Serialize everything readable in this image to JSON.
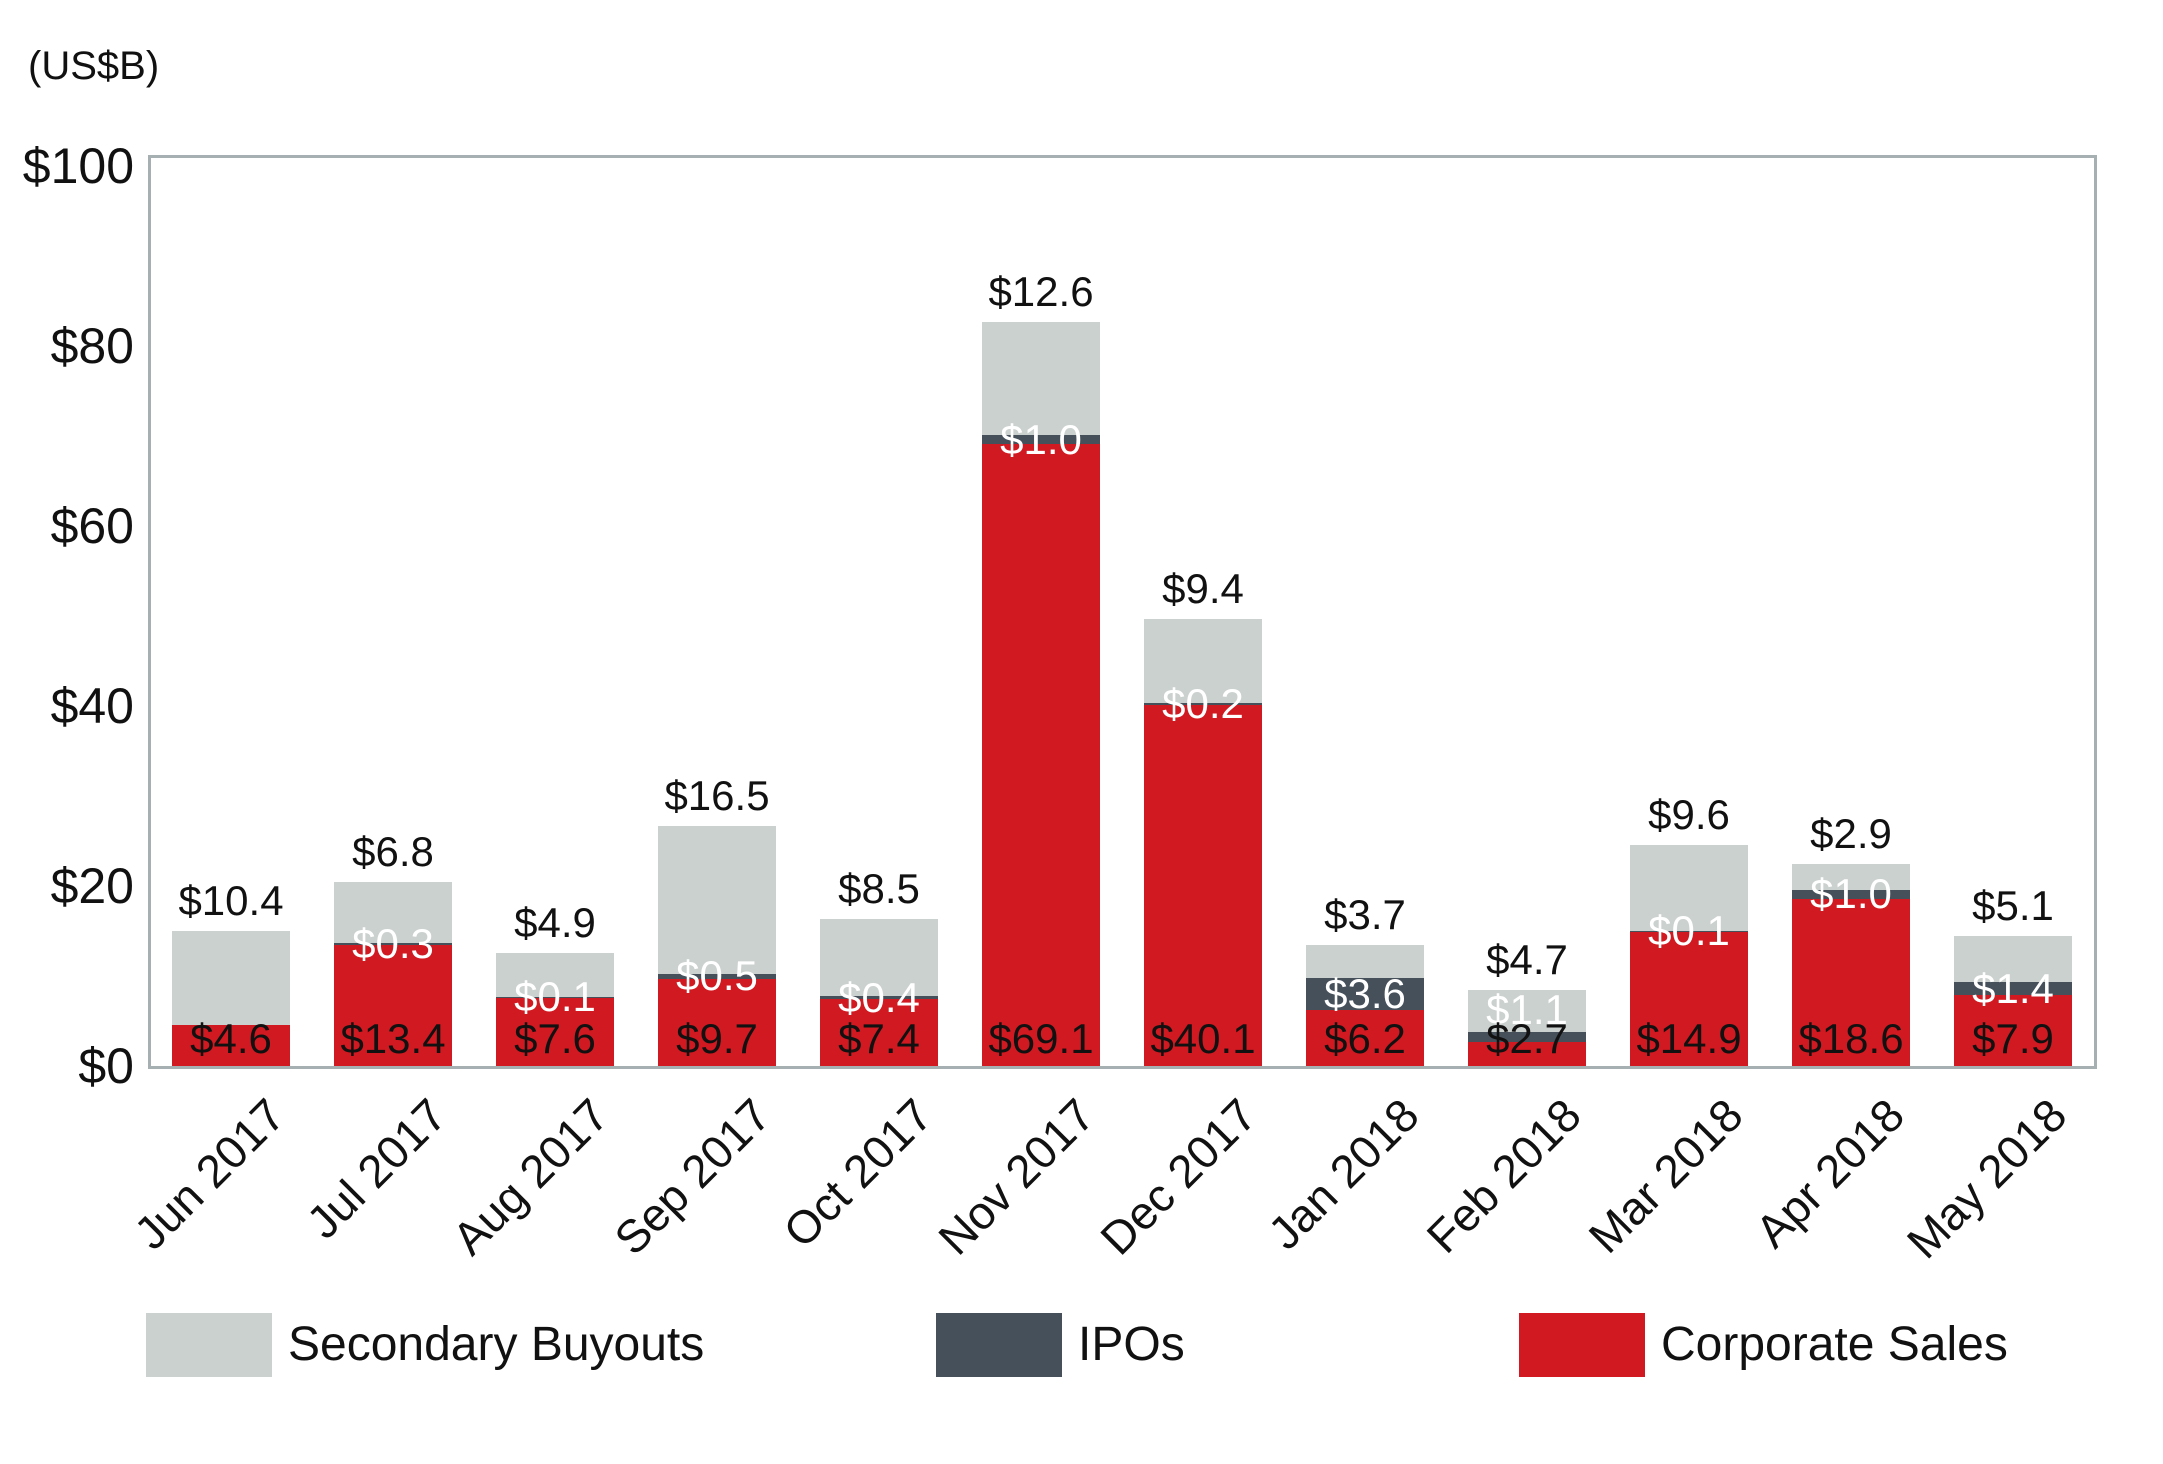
{
  "unit_label": "(US$B)",
  "y_axis": {
    "ticks": [
      {
        "label": "$0",
        "value": 0
      },
      {
        "label": "$20",
        "value": 20
      },
      {
        "label": "$40",
        "value": 40
      },
      {
        "label": "$60",
        "value": 60
      },
      {
        "label": "$80",
        "value": 80
      },
      {
        "label": "$100",
        "value": 100
      }
    ]
  },
  "legend": [
    {
      "label": "Secondary Buyouts",
      "color": "#cbd1ce"
    },
    {
      "label": "IPOs",
      "color": "#46505b"
    },
    {
      "label": "Corporate Sales",
      "color": "#d01920"
    }
  ],
  "colors": {
    "secondary_buyouts": "#cbd1ce",
    "ipos": "#46505b",
    "corporate_sales": "#d01920",
    "plot_border": "#a6b0b2",
    "label_dark": "#111111",
    "label_white": "#ffffff",
    "background": "#ffffff"
  },
  "chart_data": {
    "type": "bar",
    "stacked": true,
    "grid": false,
    "legend_position": "bottom",
    "ylabel": "(US$B)",
    "ylim": [
      0,
      100
    ],
    "categories": [
      "Jun 2017",
      "Jul 2017",
      "Aug 2017",
      "Sep 2017",
      "Oct 2017",
      "Nov 2017",
      "Dec 2017",
      "Jan 2018",
      "Feb 2018",
      "Mar 2018",
      "Apr 2018",
      "May 2018"
    ],
    "series": [
      {
        "name": "Corporate Sales",
        "color": "#d01920",
        "values": [
          4.6,
          13.4,
          7.6,
          9.7,
          7.4,
          69.1,
          40.1,
          6.2,
          2.7,
          14.9,
          18.6,
          7.9
        ]
      },
      {
        "name": "IPOs",
        "color": "#46505b",
        "values": [
          0,
          0.3,
          0.1,
          0.5,
          0.4,
          1.0,
          0.2,
          3.6,
          1.1,
          0.1,
          1.0,
          1.4
        ]
      },
      {
        "name": "Secondary Buyouts",
        "color": "#cbd1ce",
        "values": [
          10.4,
          6.8,
          4.9,
          16.5,
          8.5,
          12.6,
          9.4,
          3.7,
          4.7,
          9.6,
          2.9,
          5.1
        ]
      }
    ],
    "labels": {
      "corporate": [
        "$4.6",
        "$13.4",
        "$7.6",
        "$9.7",
        "$7.4",
        "$69.1",
        "$40.1",
        "$6.2",
        "$2.7",
        "$14.9",
        "$18.6",
        "$7.9"
      ],
      "ipo": [
        "",
        "$0.3",
        "$0.1",
        "$0.5",
        "$0.4",
        "$1.0",
        "$0.2",
        "$3.6",
        "$1.1",
        "$0.1",
        "$1.0",
        "$1.4"
      ],
      "secondary": [
        "$10.4",
        "$6.8",
        "$4.9",
        "$16.5",
        "$8.5",
        "$12.6",
        "$9.4",
        "$3.7",
        "$4.7",
        "$9.6",
        "$2.9",
        "$5.1"
      ]
    }
  }
}
